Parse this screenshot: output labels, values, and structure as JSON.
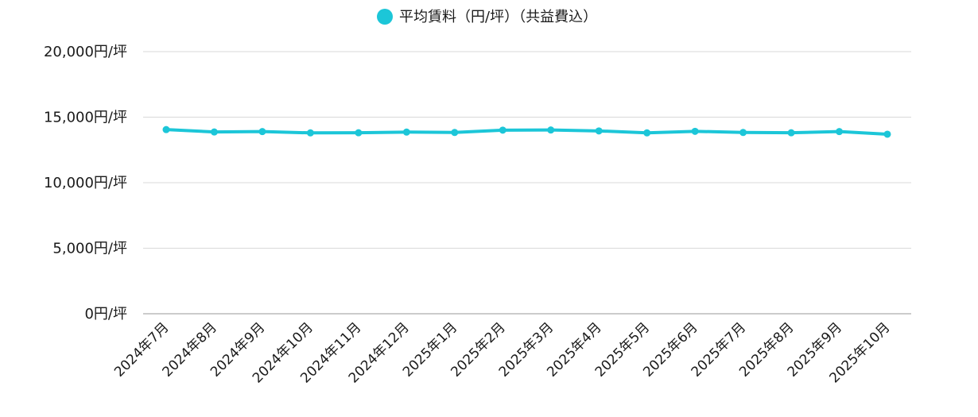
{
  "chart_data": {
    "type": "line",
    "title": "",
    "xlabel": "",
    "ylabel": "",
    "categories": [
      "2024年7月",
      "2024年8月",
      "2024年9月",
      "2024年10月",
      "2024年11月",
      "2024年12月",
      "2025年1月",
      "2025年2月",
      "2025年3月",
      "2025年4月",
      "2025年5月",
      "2025年6月",
      "2025年7月",
      "2025年8月",
      "2025年9月",
      "2025年10月"
    ],
    "series": [
      {
        "name": "平均賃料（円/坪）（共益費込）",
        "color": "#1cc6d8",
        "values": [
          14050,
          13870,
          13900,
          13800,
          13810,
          13860,
          13830,
          14010,
          14020,
          13950,
          13800,
          13920,
          13830,
          13810,
          13900,
          13700
        ]
      }
    ],
    "ylim": [
      0,
      20000
    ],
    "yticks": [
      0,
      5000,
      10000,
      15000,
      20000
    ],
    "ytick_labels": [
      "0円/坪",
      "5,000円/坪",
      "10,000円/坪",
      "15,000円/坪",
      "20,000円/坪"
    ],
    "grid": true,
    "legend_position": "top-center"
  }
}
